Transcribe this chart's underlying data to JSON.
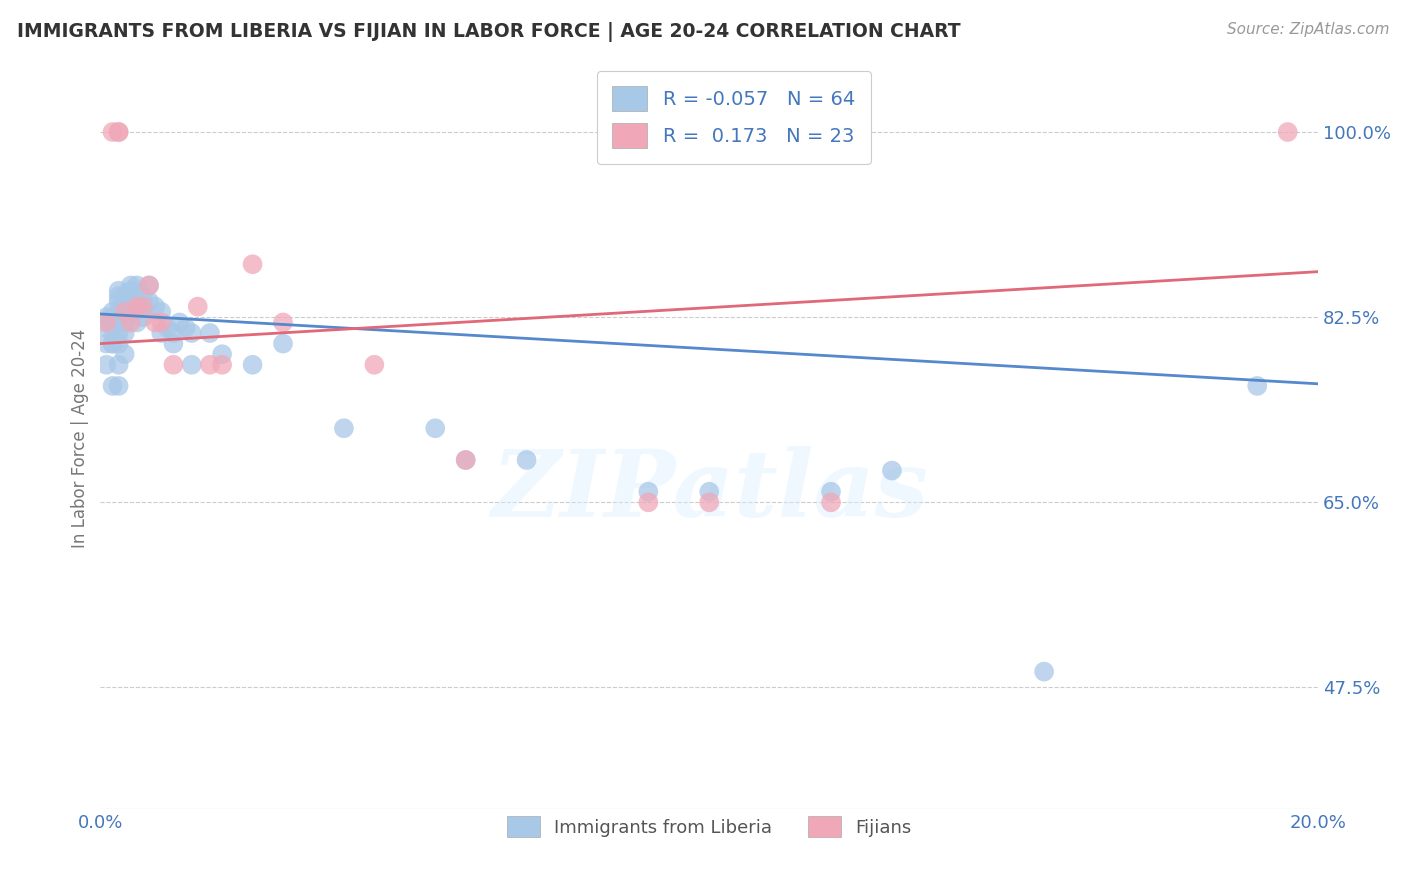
{
  "title": "IMMIGRANTS FROM LIBERIA VS FIJIAN IN LABOR FORCE | AGE 20-24 CORRELATION CHART",
  "source": "Source: ZipAtlas.com",
  "ylabel_label": "In Labor Force | Age 20-24",
  "legend_label1": "Immigrants from Liberia",
  "legend_label2": "Fijians",
  "R1": "-0.057",
  "N1": "64",
  "R2": "0.173",
  "N2": "23",
  "color_blue": "#A8C8E8",
  "color_pink": "#F0A8B8",
  "color_blue_line": "#5588CC",
  "color_pink_line": "#E06878",
  "color_text_blue": "#4477BB",
  "watermark_text": "ZIPatlas",
  "blue_x": [
    0.001,
    0.001,
    0.001,
    0.001,
    0.002,
    0.002,
    0.002,
    0.002,
    0.002,
    0.002,
    0.002,
    0.003,
    0.003,
    0.003,
    0.003,
    0.003,
    0.003,
    0.003,
    0.003,
    0.003,
    0.003,
    0.004,
    0.004,
    0.004,
    0.004,
    0.004,
    0.004,
    0.004,
    0.005,
    0.005,
    0.005,
    0.005,
    0.006,
    0.006,
    0.006,
    0.007,
    0.007,
    0.007,
    0.008,
    0.008,
    0.009,
    0.01,
    0.01,
    0.011,
    0.012,
    0.012,
    0.013,
    0.014,
    0.015,
    0.015,
    0.018,
    0.02,
    0.025,
    0.03,
    0.04,
    0.055,
    0.06,
    0.07,
    0.09,
    0.1,
    0.12,
    0.13,
    0.155,
    0.19
  ],
  "blue_y": [
    0.8,
    0.815,
    0.825,
    0.78,
    0.8,
    0.815,
    0.82,
    0.825,
    0.83,
    0.8,
    0.76,
    0.82,
    0.825,
    0.83,
    0.84,
    0.845,
    0.85,
    0.81,
    0.8,
    0.78,
    0.76,
    0.825,
    0.84,
    0.845,
    0.83,
    0.82,
    0.81,
    0.79,
    0.84,
    0.85,
    0.855,
    0.83,
    0.855,
    0.84,
    0.82,
    0.845,
    0.835,
    0.825,
    0.855,
    0.84,
    0.835,
    0.83,
    0.81,
    0.815,
    0.81,
    0.8,
    0.82,
    0.815,
    0.81,
    0.78,
    0.81,
    0.79,
    0.78,
    0.8,
    0.72,
    0.72,
    0.69,
    0.69,
    0.66,
    0.66,
    0.66,
    0.68,
    0.49,
    0.76
  ],
  "pink_x": [
    0.001,
    0.002,
    0.003,
    0.003,
    0.004,
    0.005,
    0.006,
    0.007,
    0.008,
    0.009,
    0.01,
    0.012,
    0.016,
    0.018,
    0.02,
    0.025,
    0.03,
    0.045,
    0.06,
    0.09,
    0.1,
    0.12,
    0.195
  ],
  "pink_y": [
    0.82,
    1.0,
    1.0,
    1.0,
    0.83,
    0.82,
    0.835,
    0.835,
    0.855,
    0.82,
    0.82,
    0.78,
    0.835,
    0.78,
    0.78,
    0.875,
    0.82,
    0.78,
    0.69,
    0.65,
    0.65,
    0.65,
    1.0
  ],
  "blue_line_x0": 0.0,
  "blue_line_x1": 0.2,
  "blue_line_y0": 0.828,
  "blue_line_y1": 0.762,
  "pink_line_x0": 0.0,
  "pink_line_x1": 0.2,
  "pink_line_y0": 0.8,
  "pink_line_y1": 0.868,
  "xlim": [
    0.0,
    0.2
  ],
  "ylim": [
    0.36,
    1.06
  ],
  "yticks": [
    0.475,
    0.65,
    0.825,
    1.0
  ],
  "ytick_labels": [
    "47.5%",
    "65.0%",
    "82.5%",
    "100.0%"
  ],
  "xticks": [
    0.0,
    0.2
  ],
  "xtick_labels": [
    "0.0%",
    "20.0%"
  ],
  "grid_color": "#CCCCCC"
}
